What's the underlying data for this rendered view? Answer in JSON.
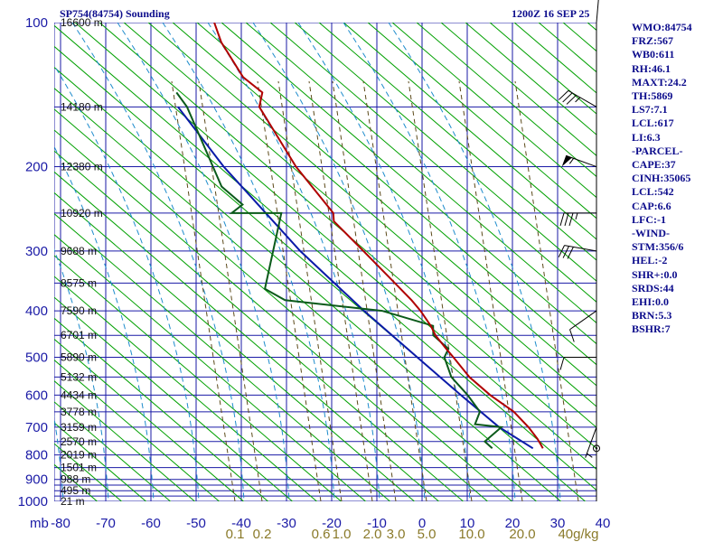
{
  "header": {
    "title": "SP754(84754) Sounding",
    "datetime": "1200Z 16 SEP 25"
  },
  "stats": [
    "WMO:84754",
    "FRZ:567",
    "WB0:611",
    "RH:46.1",
    "MAXT:24.2",
    "TH:5869",
    "LS7:7.1",
    "LCL:617",
    "LI:6.3",
    "-PARCEL-",
    "CAPE:37",
    "CINH:35065",
    "LCL:542",
    "CAP:6.6",
    "LFC:-1",
    "-WIND-",
    "STM:356/6",
    "HEL:-2",
    "SHR+:0.0",
    "SRDS:44",
    "EHI:0.0",
    "BRN:5.3",
    "BSHR:7"
  ],
  "colors": {
    "isobar": "#1a1aa6",
    "isotherm": "#1a1aa6",
    "dry_adiabat": "#00a000",
    "moist_adiabat": "#1e8ccc",
    "mixing_ratio": "#5c4a1a",
    "temperature": "#b00000",
    "dewpoint": "#0a5a1a",
    "parcel": "#0a1aa8",
    "wind": "#000000"
  },
  "chart_data": {
    "type": "skew-t",
    "x_axis_prefix": "mb",
    "pressure_levels": [
      100,
      200,
      300,
      400,
      500,
      600,
      700,
      800,
      900,
      1000
    ],
    "pressure_lines": [
      100,
      150,
      200,
      250,
      300,
      350,
      400,
      450,
      500,
      550,
      600,
      650,
      700,
      750,
      800,
      850,
      900,
      925,
      950,
      975,
      1000
    ],
    "temperature_ticks": [
      -80,
      -70,
      -60,
      -50,
      -40,
      -30,
      -20,
      -10,
      0,
      10,
      20,
      30,
      40
    ],
    "mixing_ratio_labels": [
      "0.1",
      "0.2",
      "0.6",
      "1.0",
      "2.0",
      "3.0",
      "5.0",
      "10.0",
      "20.0",
      "40g/kg"
    ],
    "heights": [
      {
        "p": 100,
        "label": "16600 m"
      },
      {
        "p": 150,
        "label": "14180 m"
      },
      {
        "p": 200,
        "label": "12380 m"
      },
      {
        "p": 250,
        "label": "10920 m"
      },
      {
        "p": 300,
        "label": "9688 m"
      },
      {
        "p": 350,
        "label": "8575 m"
      },
      {
        "p": 400,
        "label": "7590 m"
      },
      {
        "p": 450,
        "label": "6701 m"
      },
      {
        "p": 500,
        "label": "5890 m"
      },
      {
        "p": 550,
        "label": "5132 m"
      },
      {
        "p": 600,
        "label": "4434 m"
      },
      {
        "p": 650,
        "label": "3778 m"
      },
      {
        "p": 700,
        "label": "3159 m"
      },
      {
        "p": 750,
        "label": "2570 m"
      },
      {
        "p": 800,
        "label": "2019 m"
      },
      {
        "p": 850,
        "label": "1501 m"
      },
      {
        "p": 900,
        "label": "988 m"
      },
      {
        "p": 950,
        "label": "495 m"
      },
      {
        "p": 1000,
        "label": "21 m"
      }
    ],
    "temperature": [
      {
        "p": 775,
        "t": 24.2
      },
      {
        "p": 760,
        "t": 23.5
      },
      {
        "p": 740,
        "t": 22.5
      },
      {
        "p": 700,
        "t": 20.0
      },
      {
        "p": 650,
        "t": 16.0
      },
      {
        "p": 600,
        "t": 10.0
      },
      {
        "p": 550,
        "t": 4.5
      },
      {
        "p": 500,
        "t": 0.0
      },
      {
        "p": 480,
        "t": -2.0
      },
      {
        "p": 450,
        "t": -5.0
      },
      {
        "p": 430,
        "t": -6.5
      },
      {
        "p": 400,
        "t": -9.5
      },
      {
        "p": 380,
        "t": -12.0
      },
      {
        "p": 350,
        "t": -16.5
      },
      {
        "p": 300,
        "t": -25.0
      },
      {
        "p": 260,
        "t": -33.0
      },
      {
        "p": 250,
        "t": -33.5
      },
      {
        "p": 200,
        "t": -44.0
      },
      {
        "p": 150,
        "t": -55.0
      },
      {
        "p": 140,
        "t": -55.0
      },
      {
        "p": 130,
        "t": -60.0
      },
      {
        "p": 110,
        "t": -66.5
      },
      {
        "p": 100,
        "t": -69.0
      }
    ],
    "dewpoint": [
      {
        "p": 775,
        "t": 13.0
      },
      {
        "p": 750,
        "t": 11.0
      },
      {
        "p": 700,
        "t": 14.0
      },
      {
        "p": 690,
        "t": 8.0
      },
      {
        "p": 650,
        "t": 8.5
      },
      {
        "p": 600,
        "t": 5.0
      },
      {
        "p": 550,
        "t": 0.5
      },
      {
        "p": 500,
        "t": -2.0
      },
      {
        "p": 480,
        "t": -1.5
      },
      {
        "p": 450,
        "t": -5.5
      },
      {
        "p": 430,
        "t": -6.0
      },
      {
        "p": 400,
        "t": -18.0
      },
      {
        "p": 380,
        "t": -40.0
      },
      {
        "p": 360,
        "t": -45.0
      },
      {
        "p": 250,
        "t": -45.0
      },
      {
        "p": 250,
        "t": -56.0
      },
      {
        "p": 240,
        "t": -54.0
      },
      {
        "p": 220,
        "t": -59.5
      },
      {
        "p": 150,
        "t": -71.0
      },
      {
        "p": 140,
        "t": -74.0
      }
    ],
    "parcel": [
      {
        "p": 775,
        "t": 22.0
      },
      {
        "p": 700,
        "t": 13.5
      },
      {
        "p": 600,
        "t": 3.5
      },
      {
        "p": 500,
        "t": -8.0
      },
      {
        "p": 400,
        "t": -22.0
      },
      {
        "p": 300,
        "t": -39.0
      },
      {
        "p": 200,
        "t": -60.0
      },
      {
        "p": 150,
        "t": -73.0
      }
    ],
    "wind": [
      {
        "p": 100,
        "dir": 5,
        "kt": 10
      },
      {
        "p": 150,
        "dir": 300,
        "kt": 35
      },
      {
        "p": 200,
        "dir": 290,
        "kt": 55
      },
      {
        "p": 250,
        "dir": 270,
        "kt": 35
      },
      {
        "p": 300,
        "dir": 280,
        "kt": 30
      },
      {
        "p": 400,
        "dir": 235,
        "kt": 10
      },
      {
        "p": 500,
        "dir": 270,
        "kt": 10
      },
      {
        "p": 700,
        "dir": 200,
        "kt": 5
      },
      {
        "p": 775,
        "dir": 0,
        "kt": 0
      }
    ]
  }
}
